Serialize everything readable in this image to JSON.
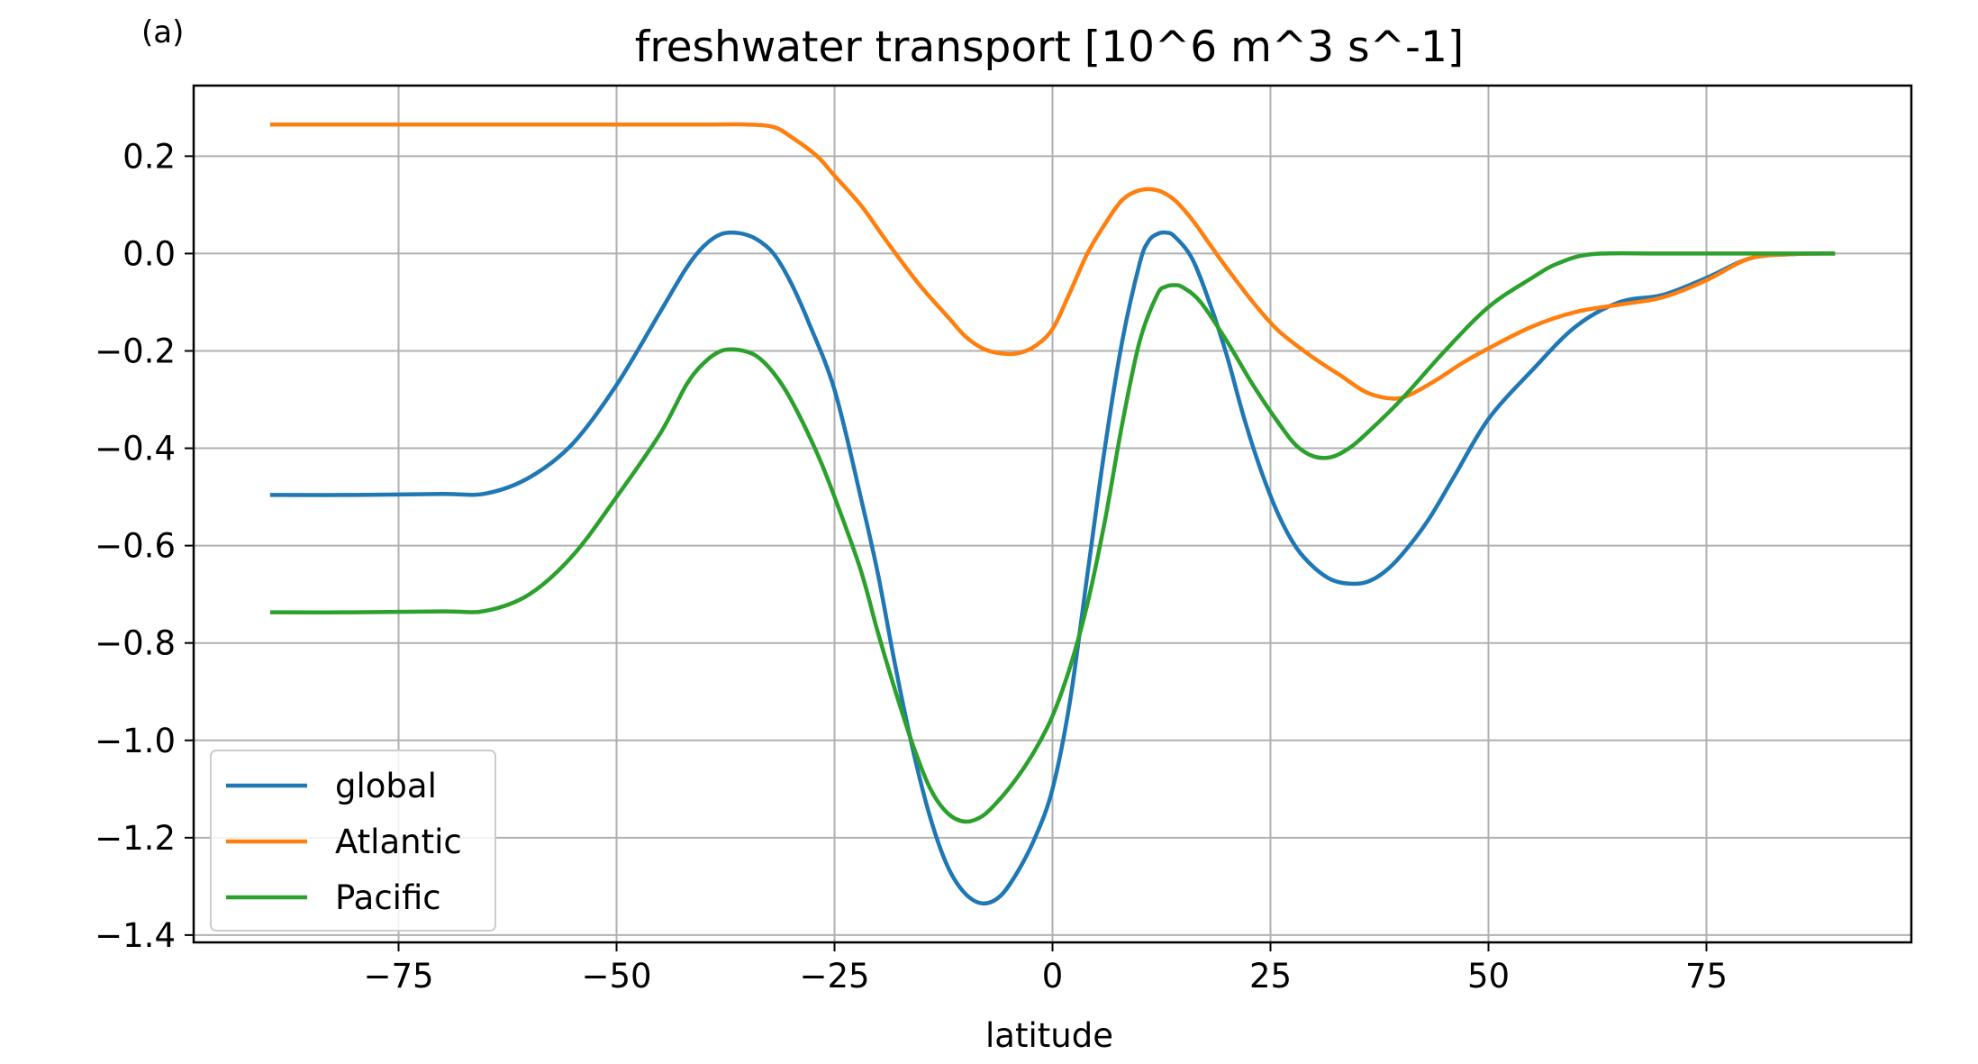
{
  "panel_label": "(a)",
  "chart_data": {
    "type": "line",
    "title": "freshwater transport [10^6 m^3 s^-1]",
    "xlabel": "latitude",
    "ylabel": "",
    "xlim": [
      -98.5,
      98.5
    ],
    "ylim": [
      -1.415,
      0.345
    ],
    "xticks": [
      -75,
      -50,
      -25,
      0,
      25,
      50,
      75
    ],
    "xtick_labels": [
      "−75",
      "−50",
      "−25",
      "0",
      "25",
      "50",
      "75"
    ],
    "yticks": [
      0.2,
      0.0,
      -0.2,
      -0.4,
      -0.6,
      -0.8,
      -1.0,
      -1.2,
      -1.4
    ],
    "ytick_labels": [
      "0.2",
      "0.0",
      "−0.2",
      "−0.4",
      "−0.6",
      "−0.8",
      "−1.0",
      "−1.2",
      "−1.4"
    ],
    "grid": true,
    "legend_position": "lower-left",
    "series": [
      {
        "name": "global",
        "color": "#1f77b4",
        "points": [
          [
            -89.5,
            -0.496
          ],
          [
            -80,
            -0.496
          ],
          [
            -70,
            -0.494
          ],
          [
            -65,
            -0.493
          ],
          [
            -60,
            -0.46
          ],
          [
            -55,
            -0.39
          ],
          [
            -50,
            -0.27
          ],
          [
            -45,
            -0.12
          ],
          [
            -42,
            -0.03
          ],
          [
            -40,
            0.015
          ],
          [
            -38,
            0.04
          ],
          [
            -36,
            0.042
          ],
          [
            -34,
            0.03
          ],
          [
            -32,
            0.0
          ],
          [
            -30,
            -0.06
          ],
          [
            -28,
            -0.14
          ],
          [
            -25,
            -0.28
          ],
          [
            -22,
            -0.5
          ],
          [
            -20,
            -0.66
          ],
          [
            -18,
            -0.85
          ],
          [
            -16,
            -1.02
          ],
          [
            -14,
            -1.16
          ],
          [
            -12,
            -1.26
          ],
          [
            -10,
            -1.315
          ],
          [
            -8,
            -1.335
          ],
          [
            -6,
            -1.32
          ],
          [
            -4,
            -1.27
          ],
          [
            -2,
            -1.2
          ],
          [
            0,
            -1.1
          ],
          [
            2,
            -0.92
          ],
          [
            4,
            -0.66
          ],
          [
            6,
            -0.4
          ],
          [
            8,
            -0.18
          ],
          [
            10,
            -0.02
          ],
          [
            11,
            0.025
          ],
          [
            12,
            0.04
          ],
          [
            13,
            0.043
          ],
          [
            14,
            0.035
          ],
          [
            16,
            -0.01
          ],
          [
            18,
            -0.1
          ],
          [
            20,
            -0.21
          ],
          [
            22,
            -0.34
          ],
          [
            24,
            -0.45
          ],
          [
            26,
            -0.54
          ],
          [
            28,
            -0.605
          ],
          [
            30,
            -0.645
          ],
          [
            32,
            -0.67
          ],
          [
            34,
            -0.678
          ],
          [
            36,
            -0.675
          ],
          [
            38,
            -0.655
          ],
          [
            40,
            -0.62
          ],
          [
            43,
            -0.55
          ],
          [
            46,
            -0.46
          ],
          [
            50,
            -0.34
          ],
          [
            55,
            -0.24
          ],
          [
            60,
            -0.15
          ],
          [
            65,
            -0.1
          ],
          [
            70,
            -0.085
          ],
          [
            75,
            -0.05
          ],
          [
            80,
            -0.01
          ],
          [
            85,
            -0.001
          ],
          [
            89.5,
            0.0
          ]
        ]
      },
      {
        "name": "Atlantic",
        "color": "#ff7f0e",
        "points": [
          [
            -89.5,
            0.265
          ],
          [
            -80,
            0.265
          ],
          [
            -70,
            0.265
          ],
          [
            -60,
            0.265
          ],
          [
            -50,
            0.265
          ],
          [
            -40,
            0.265
          ],
          [
            -35,
            0.265
          ],
          [
            -32,
            0.26
          ],
          [
            -30,
            0.24
          ],
          [
            -27,
            0.2
          ],
          [
            -25,
            0.16
          ],
          [
            -22,
            0.1
          ],
          [
            -20,
            0.05
          ],
          [
            -18,
            0.0
          ],
          [
            -15,
            -0.07
          ],
          [
            -12,
            -0.13
          ],
          [
            -10,
            -0.17
          ],
          [
            -8,
            -0.195
          ],
          [
            -6,
            -0.205
          ],
          [
            -4,
            -0.205
          ],
          [
            -2,
            -0.19
          ],
          [
            0,
            -0.155
          ],
          [
            2,
            -0.08
          ],
          [
            4,
            0.0
          ],
          [
            6,
            0.06
          ],
          [
            8,
            0.11
          ],
          [
            10,
            0.13
          ],
          [
            12,
            0.13
          ],
          [
            14,
            0.11
          ],
          [
            16,
            0.07
          ],
          [
            18,
            0.02
          ],
          [
            20,
            -0.03
          ],
          [
            23,
            -0.1
          ],
          [
            26,
            -0.16
          ],
          [
            30,
            -0.215
          ],
          [
            33,
            -0.25
          ],
          [
            36,
            -0.285
          ],
          [
            39,
            -0.298
          ],
          [
            41,
            -0.29
          ],
          [
            44,
            -0.26
          ],
          [
            47,
            -0.225
          ],
          [
            50,
            -0.195
          ],
          [
            55,
            -0.15
          ],
          [
            60,
            -0.12
          ],
          [
            65,
            -0.105
          ],
          [
            70,
            -0.09
          ],
          [
            75,
            -0.055
          ],
          [
            80,
            -0.01
          ],
          [
            85,
            -0.001
          ],
          [
            89.5,
            0.0
          ]
        ]
      },
      {
        "name": "Pacific",
        "color": "#2ca02c",
        "points": [
          [
            -89.5,
            -0.737
          ],
          [
            -80,
            -0.737
          ],
          [
            -70,
            -0.735
          ],
          [
            -65,
            -0.734
          ],
          [
            -60,
            -0.7
          ],
          [
            -55,
            -0.62
          ],
          [
            -50,
            -0.5
          ],
          [
            -45,
            -0.37
          ],
          [
            -42,
            -0.27
          ],
          [
            -40,
            -0.225
          ],
          [
            -38,
            -0.2
          ],
          [
            -36,
            -0.198
          ],
          [
            -34,
            -0.21
          ],
          [
            -32,
            -0.245
          ],
          [
            -30,
            -0.3
          ],
          [
            -27,
            -0.41
          ],
          [
            -25,
            -0.5
          ],
          [
            -22,
            -0.65
          ],
          [
            -20,
            -0.78
          ],
          [
            -18,
            -0.9
          ],
          [
            -16,
            -1.01
          ],
          [
            -14,
            -1.1
          ],
          [
            -12,
            -1.15
          ],
          [
            -10,
            -1.167
          ],
          [
            -8,
            -1.155
          ],
          [
            -6,
            -1.12
          ],
          [
            -4,
            -1.075
          ],
          [
            -2,
            -1.02
          ],
          [
            0,
            -0.95
          ],
          [
            2,
            -0.85
          ],
          [
            4,
            -0.72
          ],
          [
            6,
            -0.55
          ],
          [
            8,
            -0.35
          ],
          [
            10,
            -0.18
          ],
          [
            12,
            -0.085
          ],
          [
            13,
            -0.068
          ],
          [
            14,
            -0.065
          ],
          [
            15,
            -0.07
          ],
          [
            17,
            -0.1
          ],
          [
            20,
            -0.18
          ],
          [
            23,
            -0.27
          ],
          [
            26,
            -0.35
          ],
          [
            28,
            -0.395
          ],
          [
            30,
            -0.417
          ],
          [
            32,
            -0.418
          ],
          [
            34,
            -0.4
          ],
          [
            36,
            -0.37
          ],
          [
            40,
            -0.3
          ],
          [
            45,
            -0.2
          ],
          [
            50,
            -0.11
          ],
          [
            55,
            -0.05
          ],
          [
            58,
            -0.02
          ],
          [
            62,
            -0.001
          ],
          [
            70,
            0.0
          ],
          [
            80,
            0.0
          ],
          [
            89.5,
            0.0
          ]
        ]
      }
    ]
  }
}
